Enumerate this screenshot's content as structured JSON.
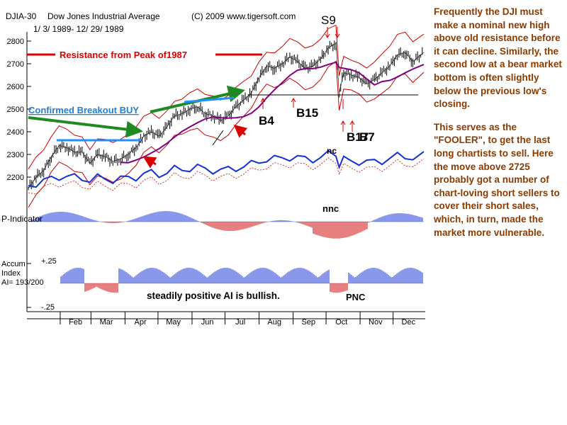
{
  "header": {
    "ticker": "DJIA-30",
    "name": "Dow Jones Industrial Average",
    "date_range": "1/ 3/ 1989- 12/ 29/ 1989",
    "copyright": "(C) 2009 www.tigersoft.com"
  },
  "commentary": {
    "paragraph_1": "Frequently the DJI must make a nominal new high above old resistance before it can decline.  Similarly, the second low at a bear market bottom is often slightly below the previous low's closing.",
    "paragraph_2": "This serves as the \"FOOLER\", to get the last long chartists to sell.  Here the move above 2725 probably got a number of chart-loving short sellers to cover their short sales, which, in turn, made the market more vulnerable."
  },
  "annotations": {
    "resistance": "Resistance from Peak of1987",
    "breakout": "Confirmed Breakout BUY",
    "s9": "S9",
    "b4": "B4",
    "b15": "B15",
    "b17": "B17",
    "b7": "B7",
    "nc": "nc",
    "nnc": "nnc",
    "pnc": "PNC",
    "ai_note": "steadily positive AI is bullish."
  },
  "indicators": {
    "p_indicator": "P-Indicator",
    "accum_line1": "Accum",
    "accum_line2": "Index",
    "accum_line3": "AI= 193/200",
    "accum_top": "+.25",
    "accum_bottom": "-.25"
  },
  "colors": {
    "price_bars": "#000000",
    "bollinger_band": "#cc0000",
    "ma_50": "#800080",
    "ma_long": "#a0002c",
    "resistance": "#dd0000",
    "arrow_green": "#1f8a1f",
    "breakout_text": "#1e7fd6",
    "trendline_blue": "#1e90ff",
    "relative_strength": "#1530d8",
    "histogram_pos": "#1530d8",
    "histogram_neg": "#cc0000",
    "commentary_text": "#8b3a00"
  },
  "chart_data": {
    "type": "line",
    "title": "Dow Jones Industrial Average",
    "ylabel": "",
    "ylim": [
      2100,
      2850
    ],
    "y_ticks": [
      2200,
      2300,
      2400,
      2500,
      2600,
      2700,
      2800
    ],
    "x_ticks": [
      "Feb",
      "Mar",
      "Apr",
      "May",
      "Jun",
      "Jul",
      "Aug",
      "Sep",
      "Oct",
      "Nov",
      "Dec"
    ],
    "grid": false,
    "series": [
      {
        "points": [
          [
            "1989-01-03",
            2150
          ],
          [
            "1989-01-10",
            2200
          ],
          [
            "1989-01-17",
            2230
          ],
          [
            "1989-01-24",
            2290
          ],
          [
            "1989-01-31",
            2340
          ],
          [
            "1989-02-07",
            2330
          ],
          [
            "1989-02-14",
            2310
          ],
          [
            "1989-02-21",
            2310
          ],
          [
            "1989-02-28",
            2260
          ],
          [
            "1989-03-07",
            2300
          ],
          [
            "1989-03-14",
            2290
          ],
          [
            "1989-03-21",
            2270
          ],
          [
            "1989-03-28",
            2280
          ],
          [
            "1989-04-04",
            2300
          ],
          [
            "1989-04-11",
            2330
          ],
          [
            "1989-04-18",
            2380
          ],
          [
            "1989-04-25",
            2400
          ],
          [
            "1989-05-02",
            2380
          ],
          [
            "1989-05-09",
            2420
          ],
          [
            "1989-05-16",
            2470
          ],
          [
            "1989-05-23",
            2480
          ],
          [
            "1989-05-30",
            2500
          ],
          [
            "1989-06-06",
            2510
          ],
          [
            "1989-06-13",
            2480
          ],
          [
            "1989-06-20",
            2470
          ],
          [
            "1989-06-27",
            2450
          ],
          [
            "1989-07-04",
            2470
          ],
          [
            "1989-07-11",
            2510
          ],
          [
            "1989-07-18",
            2540
          ],
          [
            "1989-07-25",
            2570
          ],
          [
            "1989-08-01",
            2640
          ],
          [
            "1989-08-08",
            2690
          ],
          [
            "1989-08-15",
            2680
          ],
          [
            "1989-08-22",
            2700
          ],
          [
            "1989-08-29",
            2730
          ],
          [
            "1989-09-05",
            2710
          ],
          [
            "1989-09-12",
            2680
          ],
          [
            "1989-09-19",
            2690
          ],
          [
            "1989-09-26",
            2720
          ],
          [
            "1989-10-03",
            2770
          ],
          [
            "1989-10-10",
            2790
          ],
          [
            "1989-10-13",
            2570
          ],
          [
            "1989-10-17",
            2660
          ],
          [
            "1989-10-24",
            2650
          ],
          [
            "1989-10-31",
            2640
          ],
          [
            "1989-11-07",
            2610
          ],
          [
            "1989-11-14",
            2630
          ],
          [
            "1989-11-21",
            2660
          ],
          [
            "1989-11-28",
            2690
          ],
          [
            "1989-12-05",
            2740
          ],
          [
            "1989-12-12",
            2750
          ],
          [
            "1989-12-19",
            2710
          ],
          [
            "1989-12-29",
            2750
          ]
        ]
      }
    ]
  }
}
